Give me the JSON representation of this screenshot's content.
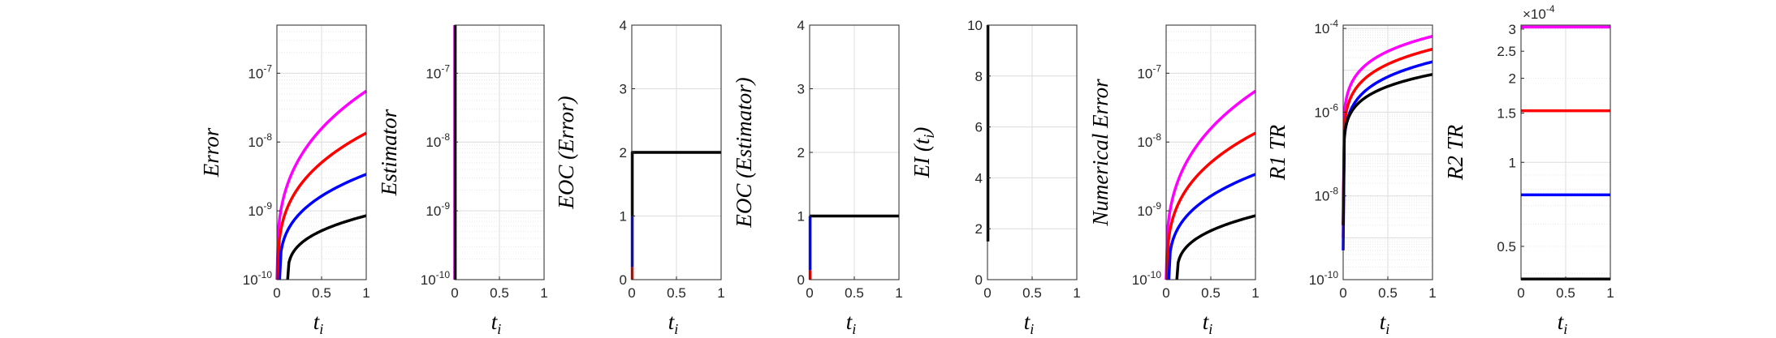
{
  "chart_data": [
    {
      "type": "line",
      "ylabel": "Error",
      "xlabel": "t",
      "xlabel_sub": "i",
      "yscale": "log",
      "xlim": [
        0,
        1
      ],
      "ylim": [
        1e-10,
        5e-07
      ],
      "xticks": [
        {
          "v": 0,
          "label": "0"
        },
        {
          "v": 0.5,
          "label": "0.5"
        },
        {
          "v": 1,
          "label": "1"
        }
      ],
      "yticks": [
        {
          "v": 1e-10,
          "base": "10",
          "exp": "-10"
        },
        {
          "v": 1e-09,
          "base": "10",
          "exp": "-9"
        },
        {
          "v": 1e-08,
          "base": "10",
          "exp": "-8"
        },
        {
          "v": 1e-07,
          "base": "10",
          "exp": "-7"
        }
      ],
      "grid": true,
      "series": [
        {
          "color": "#ff00ff",
          "curve": "rise",
          "x0": 0.0,
          "end": 5.5e-08
        },
        {
          "color": "#ff0000",
          "curve": "rise",
          "x0": 0.01,
          "end": 1.35e-08
        },
        {
          "color": "#0000ff",
          "curve": "rise",
          "x0": 0.03,
          "end": 3.4e-09
        },
        {
          "color": "#000000",
          "curve": "rise",
          "x0": 0.12,
          "end": 8.5e-10
        }
      ]
    },
    {
      "type": "line",
      "ylabel": "Estimator",
      "xlabel": "t",
      "xlabel_sub": "i",
      "yscale": "log",
      "xlim": [
        0,
        1
      ],
      "ylim": [
        1e-10,
        5e-07
      ],
      "xticks": [
        {
          "v": 0,
          "label": "0"
        },
        {
          "v": 0.5,
          "label": "0.5"
        },
        {
          "v": 1,
          "label": "1"
        }
      ],
      "yticks": [
        {
          "v": 1e-10,
          "base": "10",
          "exp": "-10"
        },
        {
          "v": 1e-09,
          "base": "10",
          "exp": "-9"
        },
        {
          "v": 1e-08,
          "base": "10",
          "exp": "-8"
        },
        {
          "v": 1e-07,
          "base": "10",
          "exp": "-7"
        }
      ],
      "grid": true,
      "series": [
        {
          "color": "#ff00ff",
          "points": [
            [
              0.0,
              1e-10
            ],
            [
              0.0,
              5e-07
            ]
          ]
        },
        {
          "color": "#000000",
          "points": [
            [
              0.005,
              1e-10
            ],
            [
              0.005,
              5e-07
            ]
          ]
        }
      ]
    },
    {
      "type": "line",
      "ylabel": "EOC (Error)",
      "xlabel": "t",
      "xlabel_sub": "i",
      "yscale": "linear",
      "xlim": [
        0,
        1
      ],
      "ylim": [
        0,
        4
      ],
      "xticks": [
        {
          "v": 0,
          "label": "0"
        },
        {
          "v": 0.5,
          "label": "0.5"
        },
        {
          "v": 1,
          "label": "1"
        }
      ],
      "yticks": [
        {
          "v": 0,
          "label": "0"
        },
        {
          "v": 1,
          "label": "1"
        },
        {
          "v": 2,
          "label": "2"
        },
        {
          "v": 3,
          "label": "3"
        },
        {
          "v": 4,
          "label": "4"
        }
      ],
      "grid": true,
      "series": [
        {
          "color": "#ff0000",
          "points": [
            [
              0.005,
              0
            ],
            [
              0.005,
              0.2
            ]
          ]
        },
        {
          "color": "#0000ff",
          "points": [
            [
              0.005,
              0.2
            ],
            [
              0.005,
              1.0
            ]
          ]
        },
        {
          "color": "#000000",
          "points": [
            [
              0.005,
              1.0
            ],
            [
              0.005,
              2.0
            ],
            [
              1.0,
              2.0
            ]
          ]
        }
      ]
    },
    {
      "type": "line",
      "ylabel": "EOC (Estimator)",
      "xlabel": "t",
      "xlabel_sub": "i",
      "yscale": "linear",
      "xlim": [
        0,
        1
      ],
      "ylim": [
        0,
        4
      ],
      "xticks": [
        {
          "v": 0,
          "label": "0"
        },
        {
          "v": 0.5,
          "label": "0.5"
        },
        {
          "v": 1,
          "label": "1"
        }
      ],
      "yticks": [
        {
          "v": 0,
          "label": "0"
        },
        {
          "v": 1,
          "label": "1"
        },
        {
          "v": 2,
          "label": "2"
        },
        {
          "v": 3,
          "label": "3"
        },
        {
          "v": 4,
          "label": "4"
        }
      ],
      "grid": true,
      "series": [
        {
          "color": "#ff0000",
          "points": [
            [
              0.005,
              0
            ],
            [
              0.005,
              0.15
            ]
          ]
        },
        {
          "color": "#0000ff",
          "points": [
            [
              0.005,
              0.15
            ],
            [
              0.005,
              1.0
            ]
          ]
        },
        {
          "color": "#000000",
          "points": [
            [
              0.005,
              1.0
            ],
            [
              1.0,
              1.0
            ]
          ]
        }
      ]
    },
    {
      "type": "line",
      "ylabel": "EI (t",
      "ylabel_sub": "i",
      "ylabel_close": ")",
      "xlabel": "t",
      "xlabel_sub": "i",
      "yscale": "linear",
      "xlim": [
        0,
        1
      ],
      "ylim": [
        0,
        10
      ],
      "xticks": [
        {
          "v": 0,
          "label": "0"
        },
        {
          "v": 0.5,
          "label": "0.5"
        },
        {
          "v": 1,
          "label": "1"
        }
      ],
      "yticks": [
        {
          "v": 0,
          "label": "0"
        },
        {
          "v": 2,
          "label": "2"
        },
        {
          "v": 4,
          "label": "4"
        },
        {
          "v": 6,
          "label": "6"
        },
        {
          "v": 8,
          "label": "8"
        },
        {
          "v": 10,
          "label": "10"
        }
      ],
      "grid": true,
      "series": [
        {
          "color": "#000000",
          "points": [
            [
              0.005,
              1.5
            ],
            [
              0.005,
              10
            ]
          ]
        }
      ]
    },
    {
      "type": "line",
      "ylabel": "Numerical Error",
      "xlabel": "t",
      "xlabel_sub": "i",
      "yscale": "log",
      "xlim": [
        0,
        1
      ],
      "ylim": [
        1e-10,
        5e-07
      ],
      "xticks": [
        {
          "v": 0,
          "label": "0"
        },
        {
          "v": 0.5,
          "label": "0.5"
        },
        {
          "v": 1,
          "label": "1"
        }
      ],
      "yticks": [
        {
          "v": 1e-10,
          "base": "10",
          "exp": "-10"
        },
        {
          "v": 1e-09,
          "base": "10",
          "exp": "-9"
        },
        {
          "v": 1e-08,
          "base": "10",
          "exp": "-8"
        },
        {
          "v": 1e-07,
          "base": "10",
          "exp": "-7"
        }
      ],
      "grid": true,
      "series": [
        {
          "color": "#ff00ff",
          "curve": "rise",
          "x0": 0.0,
          "end": 5.5e-08
        },
        {
          "color": "#ff0000",
          "curve": "rise",
          "x0": 0.01,
          "end": 1.35e-08
        },
        {
          "color": "#0000ff",
          "curve": "rise",
          "x0": 0.03,
          "end": 3.4e-09
        },
        {
          "color": "#000000",
          "curve": "rise",
          "x0": 0.12,
          "end": 8.5e-10
        }
      ]
    },
    {
      "type": "line",
      "ylabel": "R1 TR",
      "xlabel": "t",
      "xlabel_sub": "i",
      "yscale": "log",
      "xlim": [
        0,
        1
      ],
      "ylim": [
        1e-10,
        0.00012
      ],
      "xticks": [
        {
          "v": 0,
          "label": "0"
        },
        {
          "v": 0.5,
          "label": "0.5"
        },
        {
          "v": 1,
          "label": "1"
        }
      ],
      "yticks": [
        {
          "v": 1e-10,
          "base": "10",
          "exp": "-10"
        },
        {
          "v": 1e-08,
          "base": "10",
          "exp": "-8"
        },
        {
          "v": 1e-06,
          "base": "10",
          "exp": "-6"
        },
        {
          "v": 0.0001,
          "base": "10",
          "exp": "-4"
        }
      ],
      "grid": true,
      "series": [
        {
          "color": "#ff00ff",
          "curve": "steep",
          "start": 2e-09,
          "end": 6.5e-05
        },
        {
          "color": "#ff0000",
          "curve": "steep",
          "start": 1e-09,
          "end": 3.2e-05
        },
        {
          "color": "#0000ff",
          "curve": "steep",
          "start": 5e-10,
          "end": 1.6e-05
        },
        {
          "color": "#000000",
          "curve": "steep",
          "start": 2e-09,
          "end": 8e-06
        }
      ]
    },
    {
      "type": "line",
      "ylabel": "R2 TR",
      "xlabel": "t",
      "xlabel_sub": "i",
      "yscale": "log",
      "xlim": [
        0,
        1
      ],
      "ylim": [
        3.8e-05,
        0.00031
      ],
      "xticks": [
        {
          "v": 0,
          "label": "0"
        },
        {
          "v": 0.5,
          "label": "0.5"
        },
        {
          "v": 1,
          "label": "1"
        }
      ],
      "yticks": [
        {
          "v": 5e-05,
          "label": "0.5"
        },
        {
          "v": 0.0001,
          "label": "1"
        },
        {
          "v": 0.00015,
          "label": "1.5"
        },
        {
          "v": 0.0002,
          "label": "2"
        },
        {
          "v": 0.00025,
          "label": "2.5"
        },
        {
          "v": 0.0003,
          "label": "3"
        }
      ],
      "ymultiplier": {
        "base": "×10",
        "exp": "-4"
      },
      "grid": true,
      "series": [
        {
          "color": "#ff00ff",
          "points": [
            [
              0,
              0.000305
            ],
            [
              1,
              0.000305
            ]
          ]
        },
        {
          "color": "#ff0000",
          "points": [
            [
              0,
              0.000153
            ],
            [
              1,
              0.000153
            ]
          ]
        },
        {
          "color": "#0000ff",
          "points": [
            [
              0,
              7.65e-05
            ],
            [
              1,
              7.65e-05
            ]
          ]
        },
        {
          "color": "#000000",
          "points": [
            [
              0,
              3.82e-05
            ],
            [
              1,
              3.82e-05
            ]
          ]
        }
      ]
    }
  ]
}
